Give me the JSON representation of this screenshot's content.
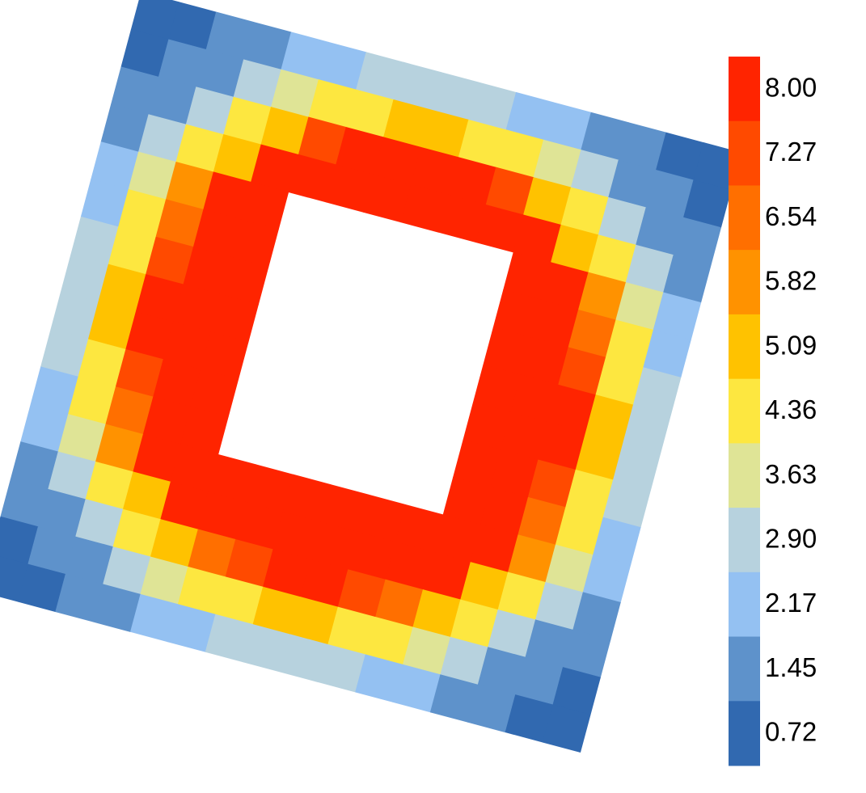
{
  "chart_data": {
    "type": "heatmap",
    "title": "",
    "xlabel": "",
    "ylabel": "",
    "rotation_deg": 15,
    "grid": false,
    "hollow_center": true,
    "colorbar": {
      "placement": "right",
      "ticks": [
        "8.00",
        "7.27",
        "6.54",
        "5.82",
        "5.09",
        "4.36",
        "3.63",
        "2.90",
        "2.17",
        "1.45",
        "0.72"
      ],
      "colors": [
        "#ff2400",
        "#ff4a00",
        "#ff6f00",
        "#ff9200",
        "#ffc200",
        "#fde740",
        "#dfe496",
        "#b7d2de",
        "#94c1f2",
        "#5e92cb",
        "#3169b0"
      ],
      "range": [
        0.72,
        8.0
      ]
    },
    "rows": 16,
    "cols": 16,
    "grid_values": [
      [
        0.72,
        1.0,
        1.5,
        1.9,
        2.3,
        2.6,
        2.8,
        2.9,
        2.9,
        2.8,
        2.6,
        2.3,
        1.9,
        1.5,
        1.0,
        0.72
      ],
      [
        1.0,
        1.5,
        2.0,
        2.8,
        3.6,
        4.3,
        4.6,
        4.8,
        4.8,
        4.6,
        4.3,
        3.6,
        2.8,
        2.0,
        1.5,
        1.0
      ],
      [
        1.5,
        2.0,
        2.9,
        4.4,
        5.3,
        7.0,
        8.0,
        8.0,
        8.0,
        8.0,
        7.0,
        5.3,
        4.4,
        2.9,
        2.0,
        1.5
      ],
      [
        1.9,
        2.8,
        4.4,
        5.3,
        8.0,
        8.0,
        8.0,
        8.0,
        8.0,
        8.0,
        8.0,
        8.0,
        5.3,
        4.4,
        2.8,
        1.9
      ],
      [
        2.3,
        3.6,
        5.5,
        7.5,
        8.0,
        null,
        null,
        null,
        null,
        null,
        null,
        8.0,
        7.5,
        5.5,
        3.6,
        2.3
      ],
      [
        2.6,
        4.3,
        6.5,
        8.0,
        8.0,
        null,
        null,
        null,
        null,
        null,
        null,
        8.0,
        8.0,
        6.5,
        4.3,
        2.6
      ],
      [
        2.8,
        4.6,
        7.2,
        8.0,
        8.0,
        null,
        null,
        null,
        null,
        null,
        null,
        8.0,
        8.0,
        7.2,
        4.6,
        2.8
      ],
      [
        2.9,
        4.8,
        7.6,
        8.0,
        8.0,
        null,
        null,
        null,
        null,
        null,
        null,
        8.0,
        8.0,
        7.6,
        4.8,
        2.9
      ],
      [
        2.9,
        4.8,
        7.6,
        8.0,
        8.0,
        null,
        null,
        null,
        null,
        null,
        null,
        8.0,
        8.0,
        7.6,
        4.8,
        2.9
      ],
      [
        2.8,
        4.6,
        7.2,
        8.0,
        8.0,
        null,
        null,
        null,
        null,
        null,
        null,
        8.0,
        8.0,
        7.2,
        4.6,
        2.8
      ],
      [
        2.6,
        4.3,
        6.5,
        8.0,
        8.0,
        null,
        null,
        null,
        null,
        null,
        null,
        8.0,
        8.0,
        6.5,
        4.3,
        2.6
      ],
      [
        2.3,
        3.6,
        5.5,
        7.5,
        8.0,
        8.0,
        8.0,
        8.0,
        8.0,
        8.0,
        8.0,
        8.0,
        7.5,
        5.5,
        3.6,
        2.3
      ],
      [
        1.9,
        2.8,
        4.4,
        5.3,
        7.5,
        8.0,
        8.0,
        8.0,
        8.0,
        8.0,
        8.0,
        7.5,
        5.3,
        4.4,
        2.8,
        1.9
      ],
      [
        1.5,
        2.0,
        2.9,
        4.4,
        5.3,
        6.5,
        7.2,
        7.6,
        7.6,
        7.2,
        6.5,
        5.3,
        4.4,
        2.9,
        2.0,
        1.5
      ],
      [
        1.0,
        1.5,
        2.0,
        2.8,
        3.6,
        4.3,
        4.6,
        4.8,
        4.8,
        4.6,
        4.3,
        3.6,
        2.8,
        2.0,
        1.5,
        1.0
      ],
      [
        0.72,
        1.0,
        1.5,
        1.9,
        2.3,
        2.6,
        2.8,
        2.9,
        2.9,
        2.8,
        2.6,
        2.3,
        1.9,
        1.5,
        1.0,
        0.72
      ]
    ]
  }
}
